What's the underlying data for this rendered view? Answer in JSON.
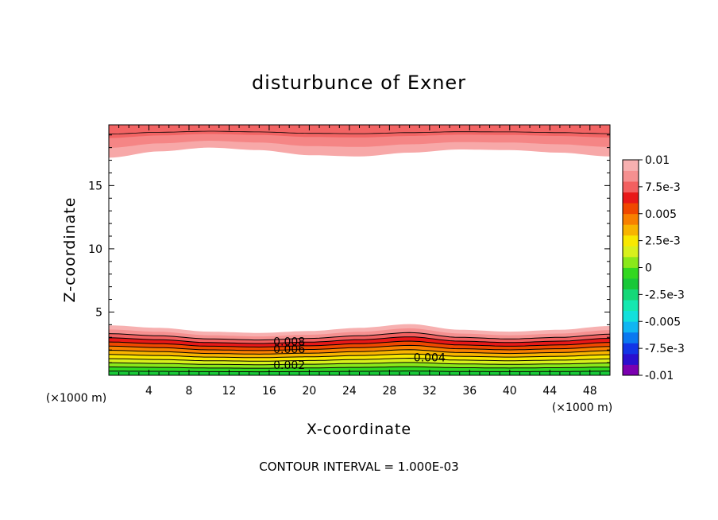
{
  "chart_data": {
    "type": "contour",
    "title": "disturbunce of Exner",
    "xlabel": "X-coordinate",
    "ylabel": "Z-coordinate",
    "x_unit": "(×1000 m)",
    "y_unit": "(×1000 m)",
    "xlim": [
      0,
      50
    ],
    "ylim": [
      0,
      19.8
    ],
    "x_ticks": [
      4,
      8,
      12,
      16,
      20,
      24,
      28,
      32,
      36,
      40,
      44,
      48
    ],
    "y_ticks": [
      5,
      10,
      15
    ],
    "colorbar": {
      "tick_labels": [
        "0.01",
        "7.5e-3",
        "0.005",
        "2.5e-3",
        "0",
        "-2.5e-3",
        "-0.005",
        "-7.5e-3",
        "-0.01"
      ],
      "colors": [
        "#7b00b0",
        "#2a0fcf",
        "#1235e6",
        "#0a78f0",
        "#10b6f2",
        "#12e0dc",
        "#14e8b0",
        "#14d878",
        "#18c838",
        "#32d820",
        "#8ae81a",
        "#d8f01c",
        "#f8e800",
        "#f8b400",
        "#f88000",
        "#f04800",
        "#e81818",
        "#f26060",
        "#f59090",
        "#f7b0b0"
      ]
    },
    "contour_levels": [
      0.001,
      0.002,
      0.003,
      0.004,
      0.005,
      0.006,
      0.007,
      0.008,
      0.009,
      0.01
    ],
    "contour_labels": [
      {
        "text": "0.008",
        "x": 18,
        "z": 2.55
      },
      {
        "text": "0.006",
        "x": 18,
        "z": 1.95
      },
      {
        "text": "0.004",
        "x": 32,
        "z": 1.3
      },
      {
        "text": "0.002",
        "x": 18,
        "z": 0.7
      }
    ],
    "lower_bands": {
      "x": [
        0,
        5,
        10,
        15,
        20,
        25,
        30,
        35,
        40,
        45,
        50
      ],
      "top": [
        3.95,
        3.75,
        3.45,
        3.35,
        3.5,
        3.75,
        4.05,
        3.6,
        3.45,
        3.6,
        3.9
      ],
      "colors": [
        "#18c838",
        "#32d820",
        "#8ae81a",
        "#d8f01c",
        "#f8e800",
        "#f8b400",
        "#f88000",
        "#f04800",
        "#e81818",
        "#f26060",
        "#f59090",
        "#f7b0b0"
      ]
    },
    "upper_bands": {
      "x": [
        0,
        5,
        10,
        15,
        20,
        25,
        30,
        35,
        40,
        45,
        50
      ],
      "bottom": [
        17.2,
        17.7,
        18.0,
        17.8,
        17.4,
        17.3,
        17.6,
        17.85,
        17.8,
        17.6,
        17.3
      ],
      "colors": [
        "#f7a8a8",
        "#f58585",
        "#f26464"
      ]
    },
    "footer": "CONTOUR INTERVAL = 1.000E-03"
  }
}
